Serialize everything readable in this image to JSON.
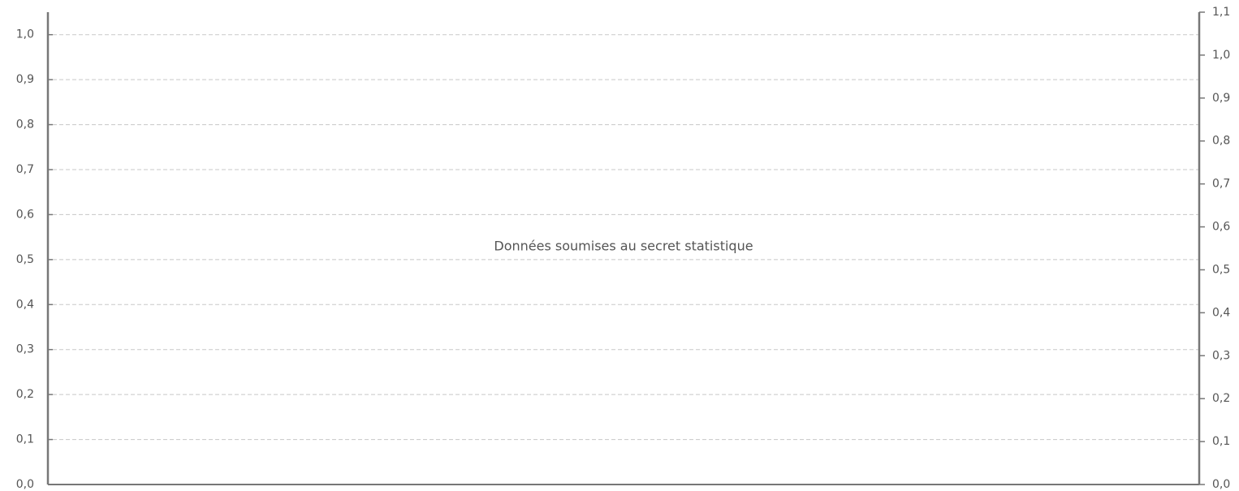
{
  "chart_data": {
    "type": "bar",
    "annotation": "Données soumises au secret statistique",
    "ylim": [
      0,
      1.05
    ],
    "yticks": [
      {
        "value": 0,
        "label": "0,0"
      },
      {
        "value": 0.1,
        "label": "0,1"
      },
      {
        "value": 0.2,
        "label": "0,2"
      },
      {
        "value": 0.3,
        "label": "0,3"
      },
      {
        "value": 0.4,
        "label": "0,4"
      },
      {
        "value": 0.5,
        "label": "0,5"
      },
      {
        "value": 0.6,
        "label": "0,6"
      },
      {
        "value": 0.7,
        "label": "0,7"
      },
      {
        "value": 0.8,
        "label": "0,8"
      },
      {
        "value": 0.9,
        "label": "0,9"
      },
      {
        "value": 1.0,
        "label": "1,0"
      }
    ],
    "y2lim": [
      0,
      1.1
    ],
    "y2ticks": [
      {
        "value": 0,
        "label": "0,0"
      },
      {
        "value": 0.1,
        "label": "0,1"
      },
      {
        "value": 0.2,
        "label": "0,2"
      },
      {
        "value": 0.3,
        "label": "0,3"
      },
      {
        "value": 0.4,
        "label": "0,4"
      },
      {
        "value": 0.5,
        "label": "0,5"
      },
      {
        "value": 0.6,
        "label": "0,6"
      },
      {
        "value": 0.7,
        "label": "0,7"
      },
      {
        "value": 0.8,
        "label": "0,8"
      },
      {
        "value": 0.9,
        "label": "0,9"
      },
      {
        "value": 1.0,
        "label": "1,0"
      },
      {
        "value": 1.1,
        "label": "1,1"
      }
    ],
    "grid": true
  }
}
